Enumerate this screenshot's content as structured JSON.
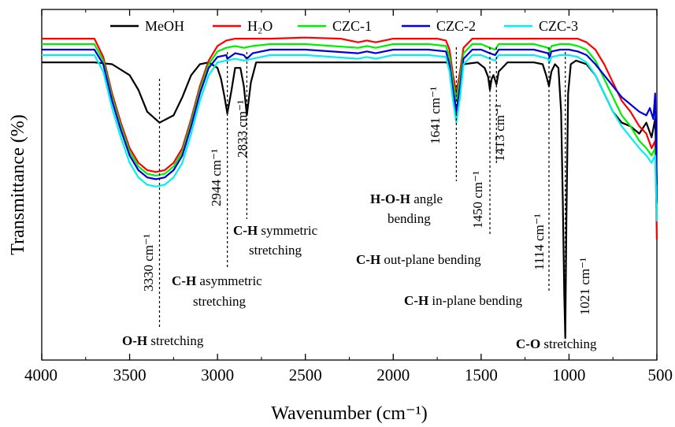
{
  "chart_data": {
    "type": "line",
    "xlabel": "Wavenumber (cm⁻¹)",
    "ylabel": "Transmittance (%)",
    "xlim": [
      4000,
      500
    ],
    "x_reversed": true,
    "x_ticks": [
      4000,
      3500,
      3000,
      2500,
      2000,
      1500,
      1000,
      500
    ],
    "y_ticks_shown": false,
    "legend_position": "top",
    "series": [
      {
        "name": "MeOH",
        "color": "#000000",
        "baseline": 0.935,
        "x": [
          4000,
          3800,
          3700,
          3600,
          3500,
          3450,
          3400,
          3330,
          3250,
          3200,
          3150,
          3100,
          3050,
          3000,
          2980,
          2960,
          2944,
          2920,
          2900,
          2870,
          2850,
          2833,
          2810,
          2780,
          2500,
          2000,
          1700,
          1680,
          1660,
          1641,
          1620,
          1600,
          1520,
          1480,
          1460,
          1450,
          1440,
          1430,
          1413,
          1400,
          1350,
          1200,
          1150,
          1130,
          1114,
          1100,
          1080,
          1060,
          1045,
          1035,
          1027,
          1021,
          1015,
          1005,
          990,
          960,
          900,
          850,
          800,
          750,
          700,
          650,
          600,
          560,
          530,
          510,
          500
        ],
        "y": [
          0.935,
          0.935,
          0.935,
          0.93,
          0.9,
          0.86,
          0.8,
          0.77,
          0.79,
          0.84,
          0.9,
          0.93,
          0.935,
          0.92,
          0.89,
          0.84,
          0.795,
          0.86,
          0.92,
          0.92,
          0.87,
          0.79,
          0.88,
          0.935,
          0.935,
          0.935,
          0.935,
          0.93,
          0.88,
          0.79,
          0.88,
          0.93,
          0.935,
          0.92,
          0.895,
          0.86,
          0.89,
          0.9,
          0.875,
          0.91,
          0.935,
          0.935,
          0.93,
          0.9,
          0.87,
          0.91,
          0.93,
          0.92,
          0.8,
          0.55,
          0.3,
          0.18,
          0.5,
          0.85,
          0.93,
          0.94,
          0.93,
          0.9,
          0.85,
          0.8,
          0.77,
          0.76,
          0.74,
          0.77,
          0.73,
          0.78,
          0.6
        ]
      },
      {
        "name": "H₂O",
        "color": "#ff0000",
        "baseline": 1.0,
        "x": [
          4000,
          3800,
          3700,
          3650,
          3600,
          3550,
          3500,
          3450,
          3400,
          3350,
          3300,
          3250,
          3200,
          3150,
          3100,
          3050,
          3000,
          2950,
          2900,
          2850,
          2800,
          2700,
          2500,
          2300,
          2200,
          2150,
          2100,
          2000,
          1800,
          1750,
          1700,
          1680,
          1660,
          1641,
          1620,
          1600,
          1550,
          1500,
          1400,
          1200,
          1000,
          950,
          900,
          850,
          800,
          750,
          700,
          650,
          600,
          560,
          530,
          510,
          500
        ],
        "y": [
          1.0,
          1.0,
          1.0,
          0.95,
          0.85,
          0.77,
          0.7,
          0.66,
          0.64,
          0.635,
          0.64,
          0.66,
          0.7,
          0.78,
          0.87,
          0.94,
          0.98,
          0.995,
          1.0,
          1.0,
          1.0,
          1.0,
          1.003,
          1.0,
          0.99,
          0.995,
          0.99,
          1.0,
          1.0,
          1.0,
          0.995,
          0.97,
          0.9,
          0.85,
          0.91,
          0.975,
          1.0,
          1.0,
          1.0,
          1.0,
          1.0,
          1.0,
          0.99,
          0.97,
          0.93,
          0.88,
          0.83,
          0.8,
          0.76,
          0.74,
          0.7,
          0.72,
          0.45
        ]
      },
      {
        "name": "CZC-1",
        "color": "#00ee00",
        "baseline": 0.985,
        "x": [
          4000,
          3800,
          3700,
          3650,
          3600,
          3550,
          3500,
          3450,
          3400,
          3350,
          3300,
          3250,
          3200,
          3150,
          3100,
          3050,
          3000,
          2950,
          2900,
          2850,
          2800,
          2700,
          2500,
          2200,
          2150,
          2100,
          2000,
          1800,
          1700,
          1680,
          1660,
          1641,
          1620,
          1600,
          1550,
          1500,
          1450,
          1420,
          1400,
          1300,
          1200,
          1120,
          1110,
          1100,
          1050,
          1000,
          950,
          900,
          850,
          800,
          750,
          700,
          650,
          600,
          560,
          530,
          510,
          500
        ],
        "y": [
          0.985,
          0.985,
          0.985,
          0.94,
          0.84,
          0.76,
          0.69,
          0.65,
          0.63,
          0.625,
          0.63,
          0.65,
          0.69,
          0.77,
          0.86,
          0.93,
          0.965,
          0.975,
          0.98,
          0.975,
          0.98,
          0.985,
          0.985,
          0.975,
          0.98,
          0.975,
          0.985,
          0.985,
          0.98,
          0.95,
          0.88,
          0.83,
          0.89,
          0.96,
          0.985,
          0.985,
          0.975,
          0.97,
          0.985,
          0.985,
          0.985,
          0.975,
          0.965,
          0.98,
          0.985,
          0.985,
          0.98,
          0.97,
          0.94,
          0.89,
          0.84,
          0.79,
          0.76,
          0.72,
          0.7,
          0.68,
          0.7,
          0.52
        ]
      },
      {
        "name": "CZC-2",
        "color": "#0000dd",
        "baseline": 0.97,
        "x": [
          4000,
          3800,
          3700,
          3650,
          3600,
          3550,
          3500,
          3450,
          3400,
          3350,
          3300,
          3250,
          3200,
          3150,
          3100,
          3050,
          3000,
          2950,
          2944,
          2900,
          2850,
          2833,
          2800,
          2700,
          2500,
          2200,
          2150,
          2100,
          2000,
          1800,
          1700,
          1680,
          1660,
          1641,
          1620,
          1600,
          1550,
          1500,
          1450,
          1420,
          1400,
          1300,
          1200,
          1120,
          1110,
          1100,
          1050,
          1000,
          950,
          900,
          850,
          800,
          750,
          700,
          650,
          600,
          560,
          540,
          520,
          510,
          500
        ],
        "y": [
          0.97,
          0.97,
          0.97,
          0.93,
          0.83,
          0.75,
          0.68,
          0.64,
          0.62,
          0.615,
          0.62,
          0.64,
          0.68,
          0.76,
          0.85,
          0.92,
          0.95,
          0.955,
          0.945,
          0.96,
          0.955,
          0.945,
          0.96,
          0.97,
          0.97,
          0.96,
          0.965,
          0.96,
          0.97,
          0.97,
          0.965,
          0.93,
          0.86,
          0.8,
          0.87,
          0.945,
          0.97,
          0.97,
          0.96,
          0.955,
          0.97,
          0.97,
          0.97,
          0.96,
          0.95,
          0.965,
          0.97,
          0.97,
          0.965,
          0.955,
          0.93,
          0.9,
          0.87,
          0.84,
          0.82,
          0.8,
          0.79,
          0.81,
          0.78,
          0.85,
          0.55
        ]
      },
      {
        "name": "CZC-3",
        "color": "#00f0f0",
        "baseline": 0.955,
        "x": [
          4000,
          3800,
          3700,
          3650,
          3600,
          3550,
          3500,
          3450,
          3400,
          3350,
          3300,
          3250,
          3200,
          3150,
          3100,
          3050,
          3000,
          2950,
          2900,
          2850,
          2800,
          2700,
          2500,
          2200,
          2150,
          2100,
          2000,
          1800,
          1700,
          1680,
          1660,
          1641,
          1620,
          1600,
          1550,
          1500,
          1450,
          1420,
          1400,
          1300,
          1200,
          1120,
          1110,
          1100,
          1050,
          1000,
          950,
          900,
          850,
          800,
          750,
          700,
          650,
          600,
          560,
          530,
          510,
          500
        ],
        "y": [
          0.955,
          0.955,
          0.955,
          0.91,
          0.81,
          0.73,
          0.66,
          0.62,
          0.6,
          0.595,
          0.6,
          0.62,
          0.66,
          0.74,
          0.83,
          0.9,
          0.935,
          0.94,
          0.945,
          0.94,
          0.945,
          0.955,
          0.955,
          0.945,
          0.95,
          0.945,
          0.955,
          0.955,
          0.95,
          0.91,
          0.83,
          0.77,
          0.84,
          0.93,
          0.955,
          0.955,
          0.945,
          0.94,
          0.955,
          0.955,
          0.955,
          0.945,
          0.935,
          0.95,
          0.955,
          0.955,
          0.95,
          0.935,
          0.9,
          0.85,
          0.8,
          0.76,
          0.73,
          0.7,
          0.68,
          0.66,
          0.68,
          0.5
        ]
      }
    ],
    "peak_lines": [
      {
        "x": 3330,
        "label": "3330 cm⁻¹"
      },
      {
        "x": 2944,
        "label": "2944 cm⁻¹"
      },
      {
        "x": 2833,
        "label": "2833 cm⁻¹"
      },
      {
        "x": 1641,
        "label": "1641 cm⁻¹"
      },
      {
        "x": 1450,
        "label": "1450 cm⁻¹"
      },
      {
        "x": 1413,
        "label": "1413 cm⁻¹"
      },
      {
        "x": 1114,
        "label": "1114 cm⁻¹"
      },
      {
        "x": 1021,
        "label": "1021 cm⁻¹"
      }
    ],
    "annotations": [
      {
        "bold": "O-H",
        "rest": " stretching"
      },
      {
        "bold": "C-H",
        "rest": " asymmetric"
      },
      {
        "bold": "",
        "rest": "stretching"
      },
      {
        "bold": "C-H",
        "rest": " symmetric"
      },
      {
        "bold": "",
        "rest": "stretching"
      },
      {
        "bold": "H-O-H",
        "rest": " angle"
      },
      {
        "bold": "",
        "rest": "bending"
      },
      {
        "bold": "C-H",
        "rest": " out-plane bending"
      },
      {
        "bold": "C-H",
        "rest": " in-plane bending"
      },
      {
        "bold": "C-O",
        "rest": " stretching"
      }
    ]
  }
}
